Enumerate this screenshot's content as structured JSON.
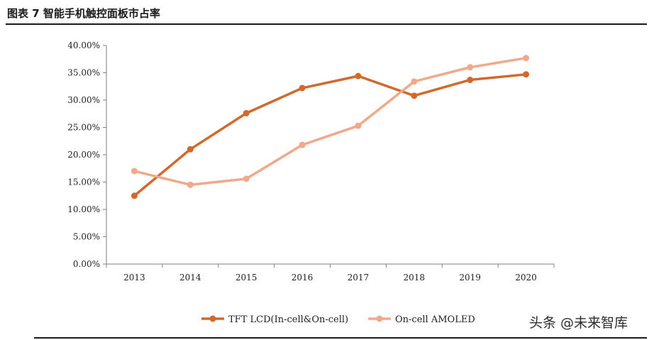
{
  "header": {
    "title": "图表 7 智能手机触控面板市占率"
  },
  "watermark": "头条 @未来智库",
  "chart_data": {
    "type": "line",
    "title": "",
    "xlabel": "",
    "ylabel": "",
    "categories": [
      "2013",
      "2014",
      "2015",
      "2016",
      "2017",
      "2018",
      "2019",
      "2020"
    ],
    "ylim": [
      0,
      40
    ],
    "y_ticks": [
      "0.00%",
      "5.00%",
      "10.00%",
      "15.00%",
      "20.00%",
      "25.00%",
      "30.00%",
      "35.00%",
      "40.00%"
    ],
    "grid": false,
    "legend_position": "bottom",
    "series": [
      {
        "name": "TFT LCD(In-cell&On-cell)",
        "color": "#D2692C",
        "values": [
          12.5,
          21.0,
          27.6,
          32.2,
          34.4,
          30.8,
          33.7,
          34.7
        ]
      },
      {
        "name": "On-cell AMOLED",
        "color": "#F0A98A",
        "values": [
          17.0,
          14.5,
          15.6,
          21.8,
          25.3,
          33.4,
          36.0,
          37.7
        ]
      }
    ]
  }
}
